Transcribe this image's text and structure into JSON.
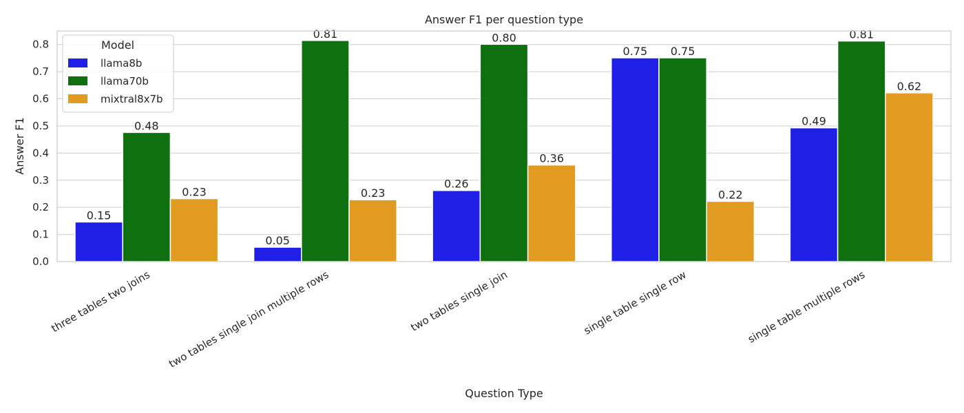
{
  "chart_data": {
    "type": "bar",
    "title": "Answer F1 per question type",
    "xlabel": "Question Type",
    "ylabel": "Answer F1",
    "ylim": [
      0,
      0.85
    ],
    "yticks": [
      0.0,
      0.1,
      0.2,
      0.3,
      0.4,
      0.5,
      0.6,
      0.7,
      0.8
    ],
    "grid": true,
    "legend": {
      "title": "Model",
      "placement": "top-left"
    },
    "categories": [
      "three tables two joins",
      "two tables single join multiple rows",
      "two tables single join",
      "single table single row",
      "single table multiple rows"
    ],
    "series": [
      {
        "name": "llama8b",
        "color": "#1f1fe6",
        "values": [
          0.146,
          0.053,
          0.262,
          0.751,
          0.493
        ],
        "labels": [
          "0.15",
          "0.05",
          "0.26",
          "0.75",
          "0.49"
        ]
      },
      {
        "name": "llama70b",
        "color": "#0f7010",
        "values": [
          0.476,
          0.815,
          0.801,
          0.751,
          0.813
        ],
        "labels": [
          "0.48",
          "0.81",
          "0.80",
          "0.75",
          "0.81"
        ]
      },
      {
        "name": "mixtral8x7b",
        "color": "#e09b20",
        "values": [
          0.232,
          0.228,
          0.356,
          0.222,
          0.622
        ],
        "labels": [
          "0.23",
          "0.23",
          "0.36",
          "0.22",
          "0.62"
        ]
      }
    ]
  }
}
